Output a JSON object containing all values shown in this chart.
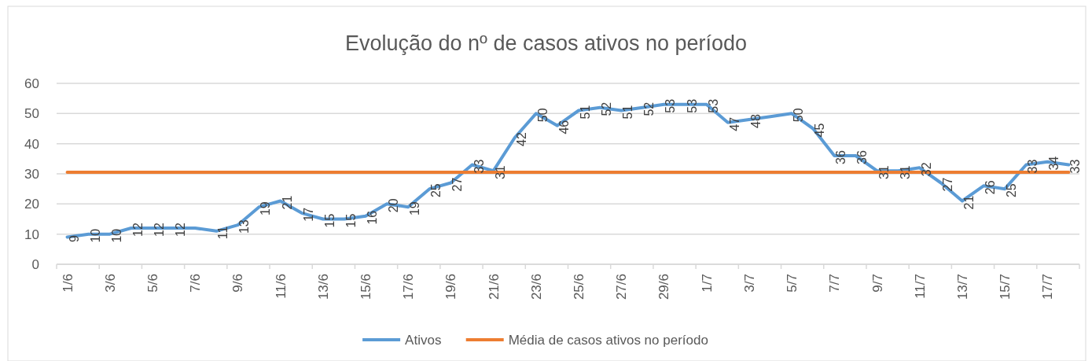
{
  "chart_data": {
    "type": "line",
    "title": "Evolução do nº de casos ativos no período",
    "categories": [
      "1/6",
      null,
      "3/6",
      null,
      "5/6",
      null,
      "7/6",
      null,
      "9/6",
      null,
      "11/6",
      null,
      "13/6",
      null,
      "15/6",
      null,
      "17/6",
      null,
      "19/6",
      null,
      "21/6",
      null,
      "23/6",
      null,
      "25/6",
      null,
      "27/6",
      null,
      "29/6",
      null,
      "1/7",
      null,
      "3/7",
      null,
      "5/7",
      null,
      "7/7",
      null,
      "9/7",
      null,
      "11/7",
      null,
      "13/7",
      null,
      "15/7",
      null,
      "17/7",
      null
    ],
    "series": [
      {
        "name": "Ativos",
        "color": "#5b9bd5",
        "values": [
          9,
          10,
          10,
          12,
          12,
          12,
          12,
          11,
          13,
          19,
          21,
          17,
          15,
          15,
          16,
          20,
          19,
          25,
          27,
          33,
          31,
          42,
          50,
          46,
          51,
          52,
          51,
          52,
          53,
          53,
          53,
          47,
          48,
          49,
          50,
          45,
          36,
          36,
          31,
          31,
          32,
          27,
          21,
          26,
          25,
          33,
          34,
          33
        ],
        "value_labels": [
          "9",
          "10",
          "10",
          "12",
          "12",
          "12",
          null,
          "11",
          "13",
          "19",
          "21",
          "17",
          "15",
          "15",
          "16",
          "20",
          "19",
          "25",
          "27",
          "33",
          "31",
          "42",
          "50",
          "46",
          "51",
          "52",
          "51",
          "52",
          "53",
          "53",
          "53",
          "47",
          "48",
          null,
          "50",
          "45",
          "36",
          "36",
          "31",
          "31",
          "32",
          "27",
          "21",
          "26",
          "25",
          "33",
          "34",
          "33"
        ]
      },
      {
        "name": "Média de casos ativos no período",
        "color": "#ed7d31",
        "values": [
          30.5,
          30.5,
          30.5,
          30.5,
          30.5,
          30.5,
          30.5,
          30.5,
          30.5,
          30.5,
          30.5,
          30.5,
          30.5,
          30.5,
          30.5,
          30.5,
          30.5,
          30.5,
          30.5,
          30.5,
          30.5,
          30.5,
          30.5,
          30.5,
          30.5,
          30.5,
          30.5,
          30.5,
          30.5,
          30.5,
          30.5,
          30.5,
          30.5,
          30.5,
          30.5,
          30.5,
          30.5,
          30.5,
          30.5,
          30.5,
          30.5,
          30.5,
          30.5,
          30.5,
          30.5,
          30.5,
          30.5,
          30.5
        ]
      }
    ],
    "ylim": [
      0,
      60
    ],
    "yticks": [
      0,
      10,
      20,
      30,
      40,
      50,
      60
    ],
    "grid": "y",
    "legend": "bottom",
    "marker": "none",
    "line_style": "solid"
  }
}
